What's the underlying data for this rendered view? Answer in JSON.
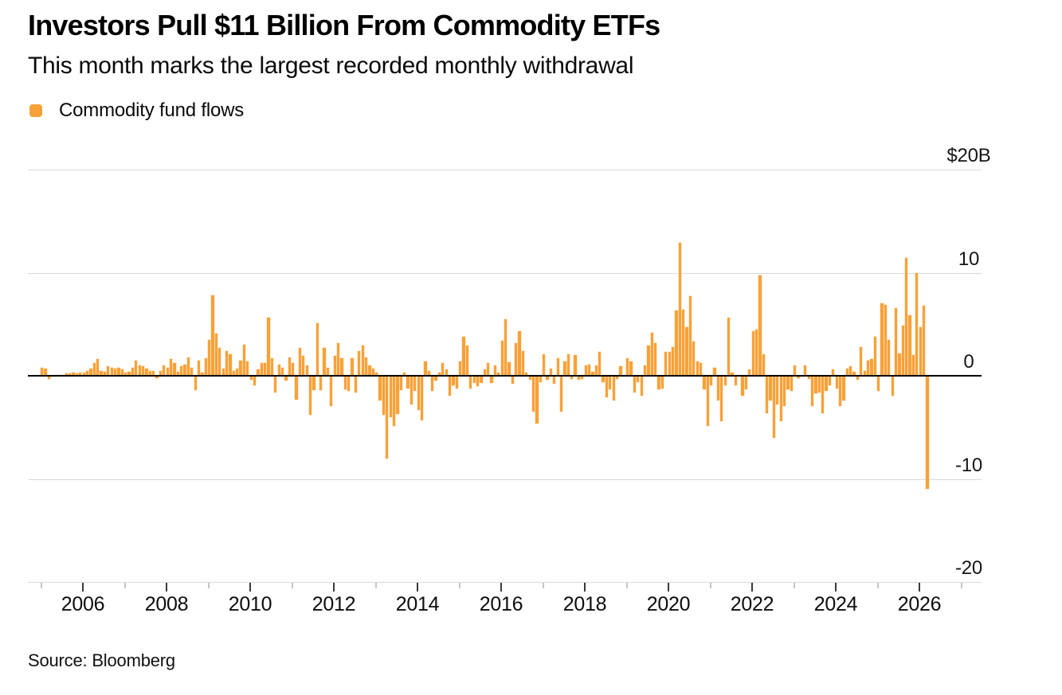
{
  "header": {
    "title": "Investors Pull $11 Billion From Commodity ETFs",
    "subtitle": "This month marks the largest recorded monthly withdrawal"
  },
  "legend": {
    "label": "Commodity fund flows",
    "swatch_color": "#f8a139"
  },
  "footer": {
    "source": "Source: Bloomberg"
  },
  "chart_data": {
    "type": "bar",
    "title": "Investors Pull $11 Billion From Commodity ETFs",
    "subtitle": "This month marks the largest recorded monthly withdrawal",
    "series_name": "Commodity fund flows",
    "unit": "billions of US dollars",
    "frequency": "monthly",
    "start": "2005-01",
    "end": "2026-03",
    "bar_color": "#f8a139",
    "gridline_color": "#d9d9d9",
    "zero_line_color": "#000000",
    "grid": "horizontal",
    "legend_position": "top-left",
    "ylim": [
      -20,
      20
    ],
    "y_ticks": [
      {
        "label": "$20B",
        "value": 20
      },
      {
        "label": "10",
        "value": 10
      },
      {
        "label": "0",
        "value": 0
      },
      {
        "label": "-10",
        "value": -10
      },
      {
        "label": "-20",
        "value": -20
      }
    ],
    "x_axis": {
      "first_tick_year": 2005,
      "last_tick_year": 2027,
      "labeled_years": [
        2006,
        2008,
        2010,
        2012,
        2014,
        2016,
        2018,
        2020,
        2022,
        2024,
        2026
      ]
    },
    "monthly": [
      {
        "year": 2005,
        "values": [
          0.8,
          0.7,
          -0.3,
          -0.1,
          0.1,
          0.1,
          0.1,
          0.2,
          0.2,
          0.3,
          0.2,
          0.3
        ]
      },
      {
        "year": 2006,
        "values": [
          0.3,
          0.5,
          0.7,
          1.2,
          1.6,
          0.5,
          0.4,
          0.9,
          0.8,
          0.7,
          0.8,
          0.6
        ]
      },
      {
        "year": 2007,
        "values": [
          0.3,
          0.4,
          0.8,
          1.5,
          1.0,
          0.9,
          0.7,
          0.5,
          0.5,
          -0.2,
          0.5,
          1.0
        ]
      },
      {
        "year": 2008,
        "values": [
          0.8,
          1.6,
          1.2,
          0.4,
          0.9,
          1.1,
          1.8,
          0.8,
          -1.4,
          1.5,
          0.3,
          1.7
        ]
      },
      {
        "year": 2009,
        "values": [
          3.5,
          7.8,
          4.1,
          2.7,
          0.7,
          2.4,
          2.1,
          0.5,
          0.7,
          1.5,
          3.0,
          1.4
        ]
      },
      {
        "year": 2010,
        "values": [
          -0.4,
          -0.9,
          0.6,
          1.2,
          1.2,
          5.6,
          1.7,
          -1.6,
          1.1,
          0.8,
          -0.5,
          1.8
        ]
      },
      {
        "year": 2011,
        "values": [
          1.2,
          -2.3,
          2.7,
          1.9,
          1.0,
          -3.8,
          -1.4,
          5.1,
          -1.4,
          2.7,
          0.8,
          -2.9
        ]
      },
      {
        "year": 2012,
        "values": [
          1.9,
          3.2,
          1.7,
          -1.3,
          -1.5,
          1.7,
          -1.6,
          2.4,
          2.9,
          1.8,
          1.0,
          0.7
        ]
      },
      {
        "year": 2013,
        "values": [
          0.3,
          -2.4,
          -3.8,
          -8.0,
          -4.0,
          -4.9,
          -3.7,
          -1.4,
          0.3,
          -1.2,
          -2.8,
          -1.5
        ]
      },
      {
        "year": 2014,
        "values": [
          -3.3,
          -4.3,
          1.4,
          0.5,
          -1.5,
          -0.5,
          0.3,
          1.2,
          0.6,
          -1.9,
          -0.9,
          -1.2
        ]
      },
      {
        "year": 2015,
        "values": [
          1.4,
          3.8,
          2.9,
          -1.2,
          -0.7,
          -1.0,
          -0.7,
          0.6,
          1.2,
          -0.7,
          1.0,
          0.3
        ]
      },
      {
        "year": 2016,
        "values": [
          3.4,
          5.5,
          1.3,
          -0.8,
          3.2,
          4.3,
          2.4,
          0.3,
          -0.4,
          -3.5,
          -4.6,
          -0.6
        ]
      },
      {
        "year": 2017,
        "values": [
          2.1,
          -0.4,
          0.7,
          -0.8,
          1.7,
          -3.5,
          1.4,
          2.1,
          -0.3,
          2.0,
          -0.4,
          -0.3
        ]
      },
      {
        "year": 2018,
        "values": [
          1.0,
          1.1,
          0.4,
          1.0,
          2.3,
          -0.6,
          -2.1,
          -1.3,
          -2.4,
          -0.3,
          0.9,
          -0.1
        ]
      },
      {
        "year": 2019,
        "values": [
          1.7,
          1.4,
          -1.6,
          -0.6,
          -1.9,
          1.0,
          2.9,
          4.2,
          3.2,
          -1.3,
          -1.2,
          2.3
        ]
      },
      {
        "year": 2020,
        "values": [
          2.3,
          2.8,
          6.3,
          12.9,
          6.4,
          4.7,
          7.7,
          3.3,
          1.4,
          1.2,
          -1.3,
          -4.9
        ]
      },
      {
        "year": 2021,
        "values": [
          -0.9,
          0.8,
          -2.4,
          -4.4,
          -0.9,
          5.6,
          0.3,
          -0.9,
          0.1,
          -1.9,
          -1.3,
          0.6
        ]
      },
      {
        "year": 2022,
        "values": [
          4.3,
          4.5,
          9.7,
          2.1,
          -3.6,
          -2.4,
          -6.0,
          -2.8,
          -4.4,
          -2.9,
          -1.3,
          -1.5
        ]
      },
      {
        "year": 2023,
        "values": [
          1.0,
          -0.2,
          -0.1,
          1.0,
          -0.3,
          -2.9,
          -1.7,
          -1.6,
          -3.6,
          -1.5,
          -0.9,
          0.6
        ]
      },
      {
        "year": 2024,
        "values": [
          -1.2,
          -2.9,
          -2.4,
          0.7,
          0.9,
          0.4,
          -0.4,
          2.8,
          0.5,
          1.5,
          1.6,
          3.8
        ]
      },
      {
        "year": 2025,
        "values": [
          -1.5,
          7.0,
          6.9,
          3.5,
          -1.9,
          6.6,
          2.2,
          4.9,
          11.4,
          5.9,
          2.0,
          10.0
        ]
      },
      {
        "year": 2026,
        "values": [
          4.7,
          6.8,
          -11.0
        ]
      }
    ]
  }
}
